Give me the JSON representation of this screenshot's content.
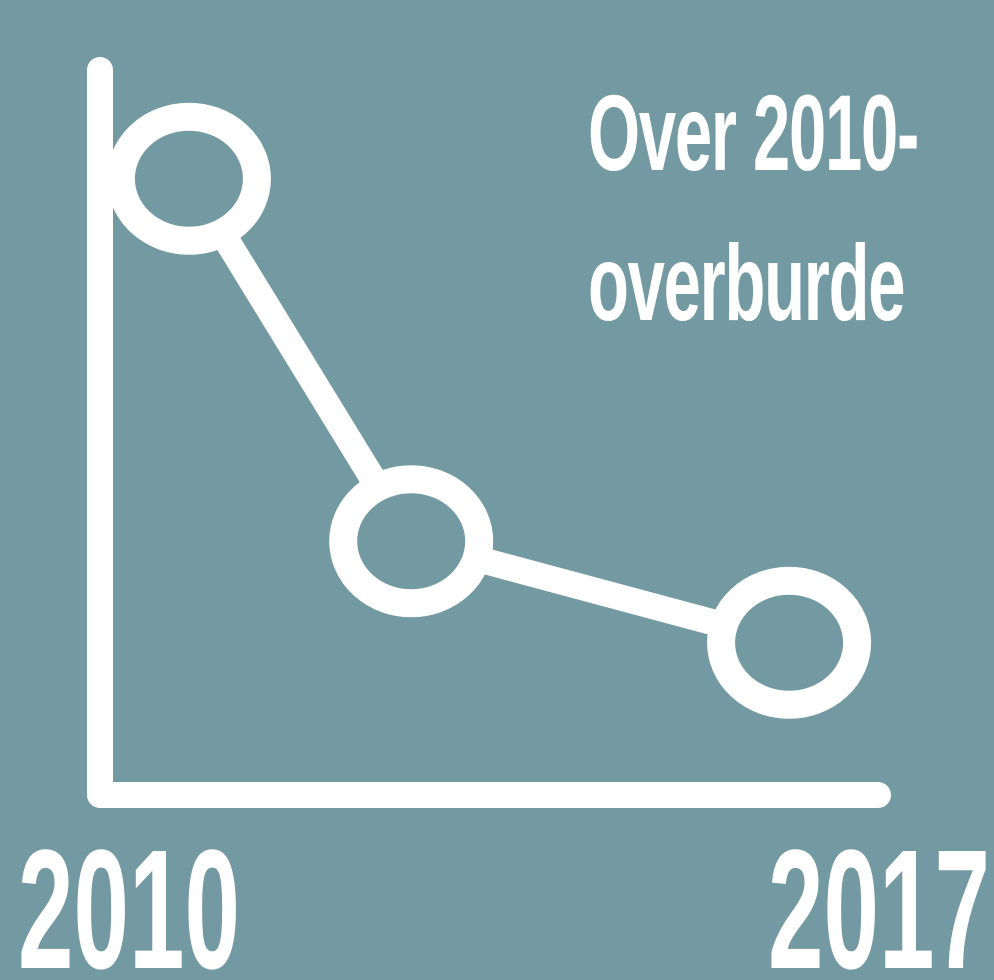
{
  "headline": {
    "line1": "Over 2010-",
    "line2": "overburde"
  },
  "colors": {
    "background": "#7399a3",
    "foreground": "#ffffff"
  },
  "chart_data": {
    "type": "line",
    "title": "",
    "xlabel": "",
    "ylabel": "",
    "tick_labels": [
      "2010",
      "2017"
    ],
    "xlim": [
      2010,
      2017
    ],
    "ylim": [
      0,
      1
    ],
    "grid": false,
    "legend": "none",
    "series": [
      {
        "x": [
          2010.8,
          2012.8,
          2016.2
        ],
        "values": [
          0.85,
          0.35,
          0.21
        ]
      }
    ]
  }
}
